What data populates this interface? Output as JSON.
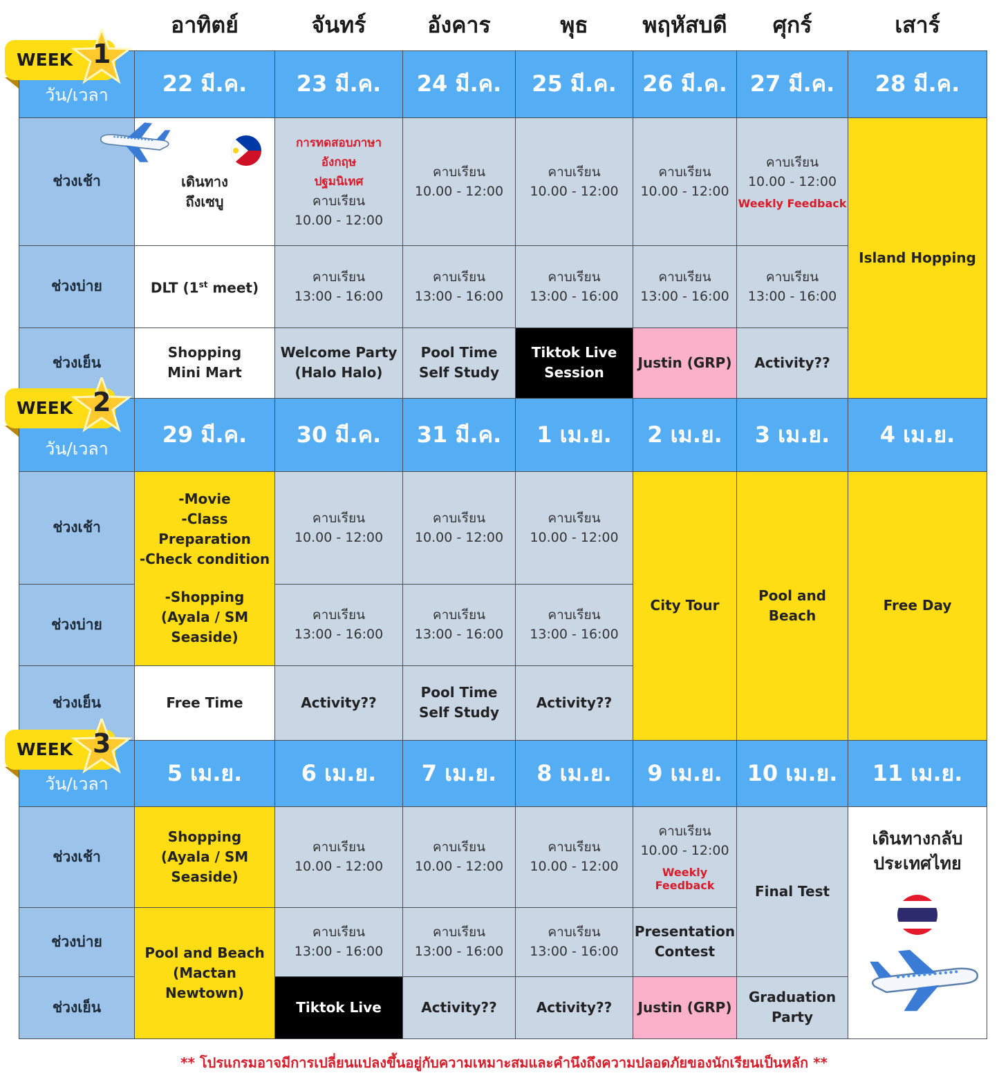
{
  "days": [
    "อาทิตย์",
    "จันทร์",
    "อังคาร",
    "พุธ",
    "พฤหัสบดี",
    "ศุกร์",
    "เสาร์"
  ],
  "slots": [
    "ช่วงเช้า",
    "ช่วงบ่าย",
    "ช่วงเย็น"
  ],
  "date_label": "วัน/เวลา",
  "weeks": [
    {
      "label": "WEEK",
      "number": "1",
      "dates": [
        "22 มี.ค.",
        "23 มี.ค.",
        "24 มี.ค.",
        "25 มี.ค.",
        "26 มี.ค.",
        "27 มี.ค.",
        "28 มี.ค."
      ],
      "rows": [
        [
          {
            "lines": [
              "เดินทาง",
              "ถึงเซบู"
            ]
          },
          {
            "header": [
              "การทดสอบภาษา",
              "อังกฤษ",
              "ปฐมนิเทศ"
            ],
            "lines": [
              "คาบเรียน",
              "10.00 - 12:00"
            ]
          },
          {
            "lines": [
              "คาบเรียน",
              "10.00 - 12:00"
            ]
          },
          {
            "lines": [
              "คาบเรียน",
              "10.00 - 12:00"
            ]
          },
          {
            "lines": [
              "คาบเรียน",
              "10.00 - 12:00"
            ]
          },
          {
            "lines": [
              "คาบเรียน",
              "10.00 - 12:00"
            ],
            "note": "Weekly Feedback"
          },
          {
            "lines": [
              "Island Hopping"
            ]
          }
        ],
        [
          {
            "text": "DLT (1",
            "sup": "st",
            "tail": " meet)"
          },
          {
            "lines": [
              "คาบเรียน",
              "13:00 - 16:00"
            ]
          },
          {
            "lines": [
              "คาบเรียน",
              "13:00 - 16:00"
            ]
          },
          {
            "lines": [
              "คาบเรียน",
              "13:00 - 16:00"
            ]
          },
          {
            "lines": [
              "คาบเรียน",
              "13:00 - 16:00"
            ]
          },
          {
            "lines": [
              "คาบเรียน",
              "13:00 - 16:00"
            ]
          }
        ],
        [
          {
            "lines": [
              "Shopping",
              "Mini Mart"
            ]
          },
          {
            "lines": [
              "Welcome Party",
              "(Halo Halo)"
            ]
          },
          {
            "lines": [
              "Pool Time",
              "Self Study"
            ]
          },
          {
            "lines": [
              "Tiktok Live",
              "Session"
            ]
          },
          {
            "lines": [
              "Justin (GRP)"
            ]
          },
          {
            "lines": [
              "Activity??"
            ]
          }
        ]
      ]
    },
    {
      "label": "WEEK",
      "number": "2",
      "dates": [
        "29 มี.ค.",
        "30 มี.ค.",
        "31 มี.ค.",
        "1 เม.ย.",
        "2 เม.ย.",
        "3 เม.ย.",
        "4 เม.ย."
      ],
      "rows": [
        [
          {
            "lines": [
              "-Movie",
              "-Class Preparation",
              "-Check condition",
              "-Shopping",
              "(Ayala / SM Seaside)"
            ]
          },
          {
            "lines": [
              "คาบเรียน",
              "10.00 - 12:00"
            ]
          },
          {
            "lines": [
              "คาบเรียน",
              "10.00 - 12:00"
            ]
          },
          {
            "lines": [
              "คาบเรียน",
              "10.00 - 12:00"
            ]
          },
          {
            "lines": [
              "City Tour"
            ]
          },
          {
            "lines": [
              "Pool and",
              "Beach"
            ]
          },
          {
            "lines": [
              "Free Day"
            ]
          }
        ],
        [
          {
            "lines": [
              "คาบเรียน",
              "13:00 - 16:00"
            ]
          },
          {
            "lines": [
              "คาบเรียน",
              "13:00 - 16:00"
            ]
          },
          {
            "lines": [
              "คาบเรียน",
              "13:00 - 16:00"
            ]
          }
        ],
        [
          {
            "lines": [
              "Free Time"
            ]
          },
          {
            "lines": [
              "Activity??"
            ]
          },
          {
            "lines": [
              "Pool Time",
              "Self Study"
            ]
          },
          {
            "lines": [
              "Activity??"
            ]
          }
        ]
      ]
    },
    {
      "label": "WEEK",
      "number": "3",
      "dates": [
        "5 เม.ย.",
        "6 เม.ย.",
        "7 เม.ย.",
        "8 เม.ย.",
        "9 เม.ย.",
        "10 เม.ย.",
        "11 เม.ย."
      ],
      "rows": [
        [
          {
            "lines": [
              "Shopping",
              "(Ayala / SM",
              "Seaside)"
            ]
          },
          {
            "lines": [
              "คาบเรียน",
              "10.00 - 12:00"
            ]
          },
          {
            "lines": [
              "คาบเรียน",
              "10.00 - 12:00"
            ]
          },
          {
            "lines": [
              "คาบเรียน",
              "10.00 - 12:00"
            ]
          },
          {
            "lines": [
              "คาบเรียน",
              "10.00 - 12:00"
            ],
            "note": "Weekly Feedback"
          },
          {
            "lines": [
              "Final Test"
            ]
          },
          {
            "lines": [
              "เดินทางกลับ",
              "ประเทศไทย"
            ]
          }
        ],
        [
          {
            "lines": [
              "Pool and Beach",
              "(Mactan Newtown)"
            ]
          },
          {
            "lines": [
              "คาบเรียน",
              "13:00 - 16:00"
            ]
          },
          {
            "lines": [
              "คาบเรียน",
              "13:00 - 16:00"
            ]
          },
          {
            "lines": [
              "คาบเรียน",
              "13:00 - 16:00"
            ]
          },
          {
            "lines": [
              "Presentation",
              "Contest"
            ]
          }
        ],
        [
          {
            "lines": [
              "Tiktok Live"
            ]
          },
          {
            "lines": [
              "Activity??"
            ]
          },
          {
            "lines": [
              "Activity??"
            ]
          },
          {
            "lines": [
              "Justin (GRP)"
            ]
          },
          {
            "lines": [
              "Graduation",
              "Party"
            ]
          }
        ]
      ]
    }
  ],
  "footer": "** โปรแกรมอาจมีการเปลี่ยนแปลงขึ้นอยู่กับความเหมาะสมและคำนึงถึงความปลอดภัยของนักเรียนเป็นหลัก **"
}
